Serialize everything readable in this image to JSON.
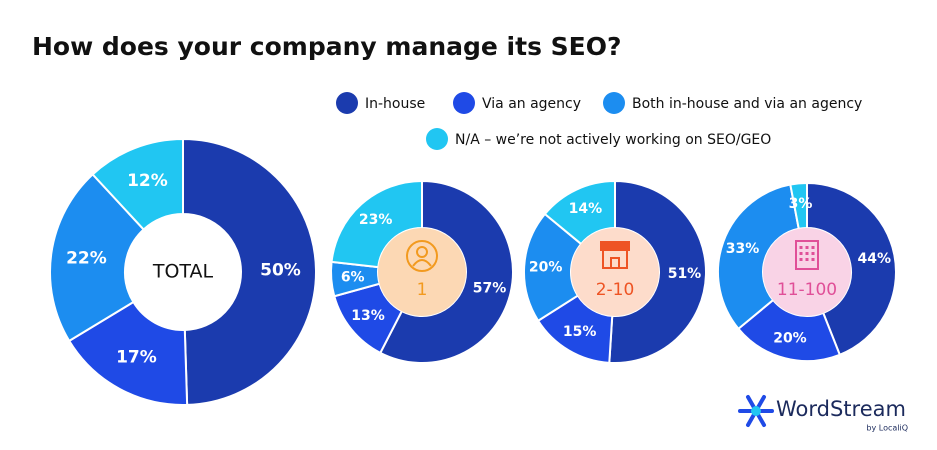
{
  "title": "How does your company manage its SEO?",
  "legend": {
    "categories": [
      "In-house",
      "Via an agency",
      "Both in-house and via an agency",
      "N/A – we’re not actively working on SEO/GEO"
    ],
    "colors": [
      "#1b3bae",
      "#1f4ae6",
      "#1c8df0",
      "#21c6f2"
    ]
  },
  "chart_data": [
    {
      "type": "pie",
      "center_label": "TOTAL",
      "center_fill": "#ffffff",
      "center_color": "#111111",
      "values": [
        50,
        17,
        22,
        12
      ],
      "value_labels": [
        "50%",
        "17%",
        "22%",
        "12%"
      ]
    },
    {
      "type": "pie",
      "center_label": "1",
      "center_fill": "#fcd8b4",
      "center_color": "#f29a1f",
      "values": [
        57,
        13,
        6,
        23
      ],
      "value_labels": [
        "57%",
        "13%",
        "6%",
        "23%"
      ]
    },
    {
      "type": "pie",
      "center_label": "2-10",
      "center_fill": "#fddccb",
      "center_color": "#ee5424",
      "values": [
        51,
        15,
        20,
        14
      ],
      "value_labels": [
        "51%",
        "15%",
        "20%",
        "14%"
      ]
    },
    {
      "type": "pie",
      "center_label": "11-100",
      "center_fill": "#f9d3e6",
      "center_color": "#e04f98",
      "values": [
        44,
        20,
        33,
        3
      ],
      "value_labels": [
        "44%",
        "20%",
        "33%",
        "3%"
      ]
    }
  ],
  "brand": {
    "name": "WordStream",
    "byline": "by LocaliQ"
  }
}
